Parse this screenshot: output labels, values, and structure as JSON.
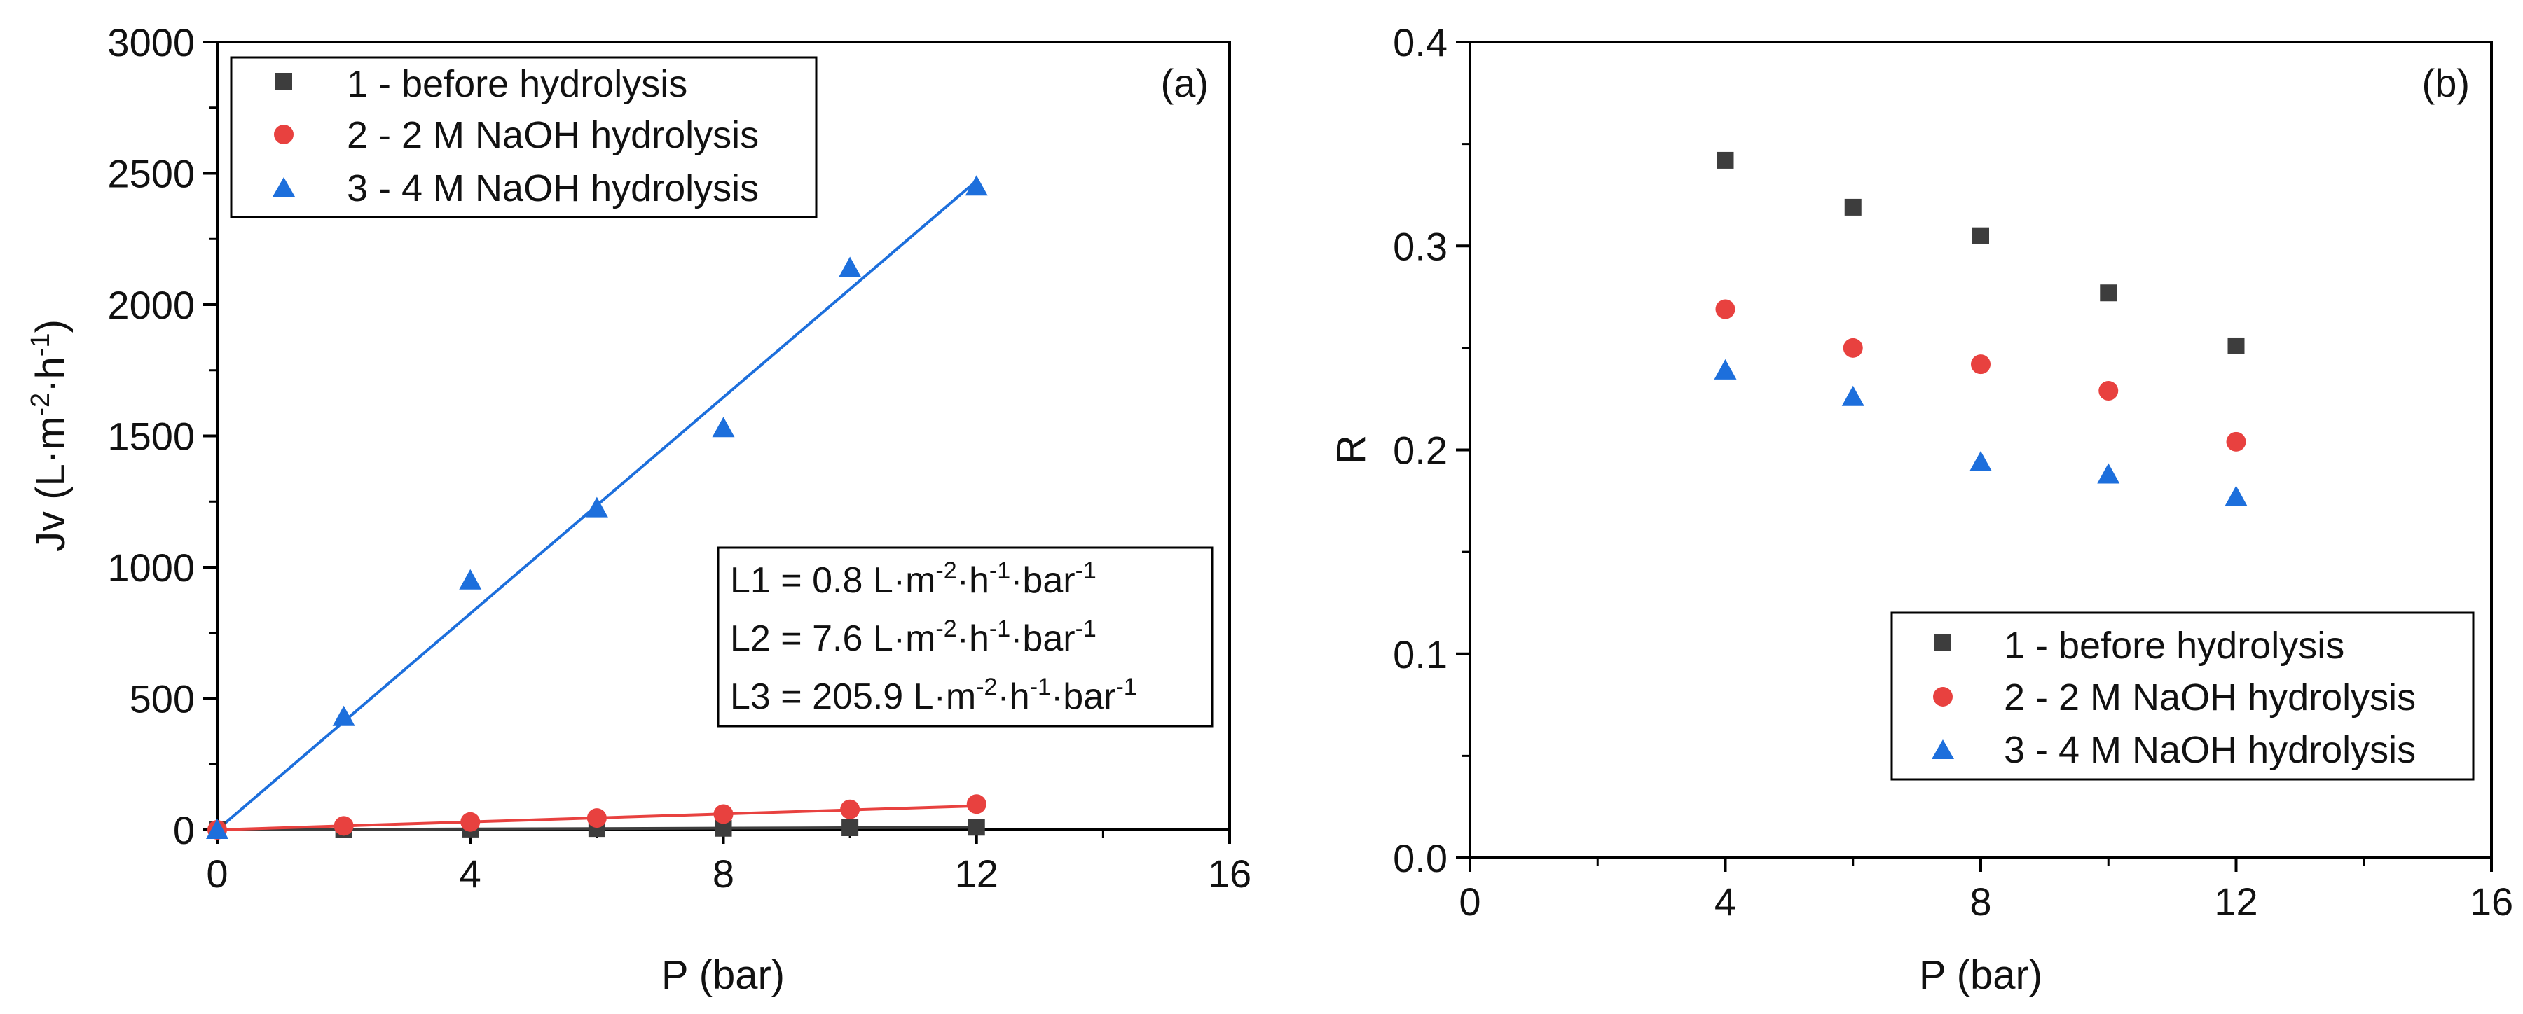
{
  "colors": {
    "series1": "#3d3d3d",
    "series2": "#e8413f",
    "series3": "#1d6fdc",
    "axis": "#000000"
  },
  "chart_data": [
    {
      "panel_label": "(a)",
      "type": "scatter",
      "xlabel": "P (bar)",
      "ylabel": "Jv (L·m-2·h-1)",
      "ylabel_parts": {
        "base": "Jv (L·m",
        "exp1": "-2",
        "mid": "·h",
        "exp2": "-1",
        "end": ")"
      },
      "xlim": [
        0,
        16
      ],
      "ylim": [
        0,
        3000
      ],
      "xticks": [
        0,
        4,
        8,
        12,
        16
      ],
      "yticks": [
        0,
        500,
        1000,
        1500,
        2000,
        2500,
        3000
      ],
      "legend_position": "top-left",
      "series": [
        {
          "name": "1 - before hydrolysis",
          "marker": "square",
          "color": "#3d3d3d",
          "x": [
            0,
            2,
            4,
            6,
            8,
            10,
            12
          ],
          "y": [
            0,
            2,
            3,
            5,
            6,
            8,
            10
          ],
          "fit": [
            [
              0,
              0
            ],
            [
              12,
              9.6
            ]
          ]
        },
        {
          "name": "2 - 2 M NaOH hydrolysis",
          "marker": "circle",
          "color": "#e8413f",
          "x": [
            0,
            2,
            4,
            6,
            8,
            10,
            12
          ],
          "y": [
            0,
            15,
            30,
            45,
            60,
            78,
            98
          ],
          "fit": [
            [
              0,
              0
            ],
            [
              12,
              91
            ]
          ]
        },
        {
          "name": "3 - 4 M NaOH hydrolysis",
          "marker": "triangle",
          "color": "#1d6fdc",
          "x": [
            0,
            2,
            4,
            6,
            8,
            10,
            12
          ],
          "y": [
            0,
            430,
            950,
            1225,
            1530,
            2140,
            2450
          ],
          "fit": [
            [
              0,
              0
            ],
            [
              12,
              2471
            ]
          ]
        }
      ],
      "annotation": [
        {
          "label": "L1 = 0.8 L·m",
          "e1": "-2",
          "m": "·h",
          "e2": "-1",
          "u": "·bar",
          "e3": "-1"
        },
        {
          "label": "L2 = 7.6 L·m",
          "e1": "-2",
          "m": "·h",
          "e2": "-1",
          "u": "·bar",
          "e3": "-1"
        },
        {
          "label": "L3 = 205.9 L·m",
          "e1": "-2",
          "m": "·h",
          "e2": "-1",
          "u": "·bar",
          "e3": "-1"
        }
      ]
    },
    {
      "panel_label": "(b)",
      "type": "scatter",
      "xlabel": "P (bar)",
      "ylabel": "R",
      "xlim": [
        0,
        16
      ],
      "ylim": [
        0,
        0.4
      ],
      "xticks": [
        0,
        4,
        8,
        12,
        16
      ],
      "yticks": [
        0,
        0.1,
        0.2,
        0.3,
        0.4
      ],
      "ytick_labels": [
        "0.0",
        "0.1",
        "0.2",
        "0.3",
        "0.4"
      ],
      "legend_position": "bottom-right",
      "series": [
        {
          "name": "1 - before hydrolysis",
          "marker": "square",
          "color": "#3d3d3d",
          "x": [
            4,
            6,
            8,
            10,
            12
          ],
          "y": [
            0.342,
            0.319,
            0.305,
            0.277,
            0.251
          ]
        },
        {
          "name": "2 - 2 M NaOH hydrolysis",
          "marker": "circle",
          "color": "#e8413f",
          "x": [
            4,
            6,
            8,
            10,
            12
          ],
          "y": [
            0.269,
            0.25,
            0.242,
            0.229,
            0.204
          ]
        },
        {
          "name": "3 - 4 M NaOH hydrolysis",
          "marker": "triangle",
          "color": "#1d6fdc",
          "x": [
            4,
            6,
            8,
            10,
            12
          ],
          "y": [
            0.239,
            0.226,
            0.194,
            0.188,
            0.177
          ]
        }
      ]
    }
  ]
}
